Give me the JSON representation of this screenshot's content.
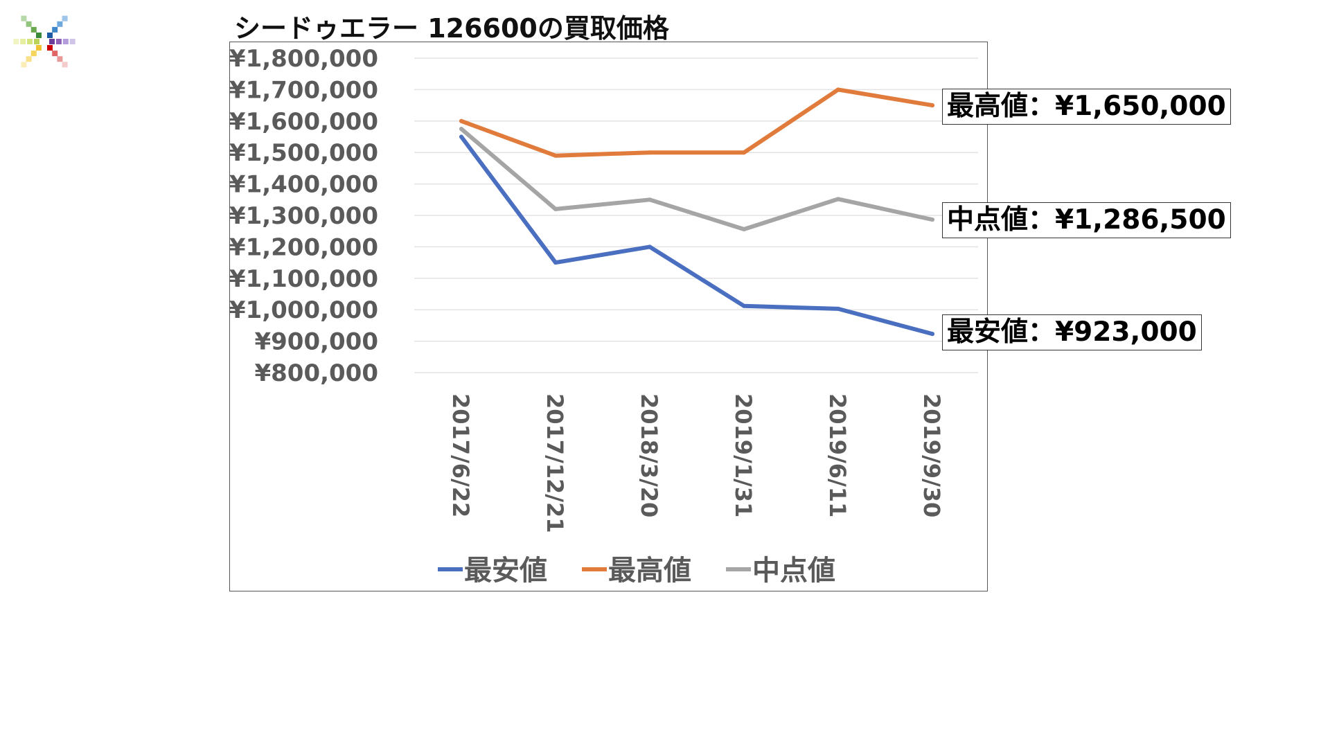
{
  "slide": {
    "title": "シードゥエラー 126600の買取価格"
  },
  "chart_data": {
    "type": "line",
    "title": "",
    "xlabel": "",
    "ylabel": "",
    "categories": [
      "2017/6/22",
      "2017/12/21",
      "2018/3/20",
      "2019/1/31",
      "2019/6/11",
      "2019/9/30"
    ],
    "series": [
      {
        "name": "最安値",
        "color": "#4a6fc0",
        "values": [
          1550000,
          1150000,
          1200000,
          1012000,
          1003000,
          923000
        ]
      },
      {
        "name": "最高値",
        "color": "#e07b3b",
        "values": [
          1600000,
          1490000,
          1500000,
          1500000,
          1700000,
          1650000
        ]
      },
      {
        "name": "中点値",
        "color": "#a5a5a5",
        "values": [
          1575000,
          1320000,
          1350000,
          1256000,
          1352000,
          1286500
        ]
      }
    ],
    "ylim": [
      800000,
      1800000
    ],
    "yticks": [
      1800000,
      1700000,
      1600000,
      1500000,
      1400000,
      1300000,
      1200000,
      1100000,
      1000000,
      900000,
      800000
    ],
    "ytick_labels": [
      "¥1,800,000",
      "¥1,700,000",
      "¥1,600,000",
      "¥1,500,000",
      "¥1,400,000",
      "¥1,300,000",
      "¥1,200,000",
      "¥1,100,000",
      "¥1,000,000",
      "¥900,000",
      "¥800,000"
    ],
    "grid": true,
    "legend_position": "bottom",
    "annotations": [
      {
        "series": "最高値",
        "text": "最高値：¥1,650,000"
      },
      {
        "series": "中点値",
        "text": "中点値：¥1,286,500"
      },
      {
        "series": "最安値",
        "text": "最安値：¥923,000"
      }
    ]
  }
}
